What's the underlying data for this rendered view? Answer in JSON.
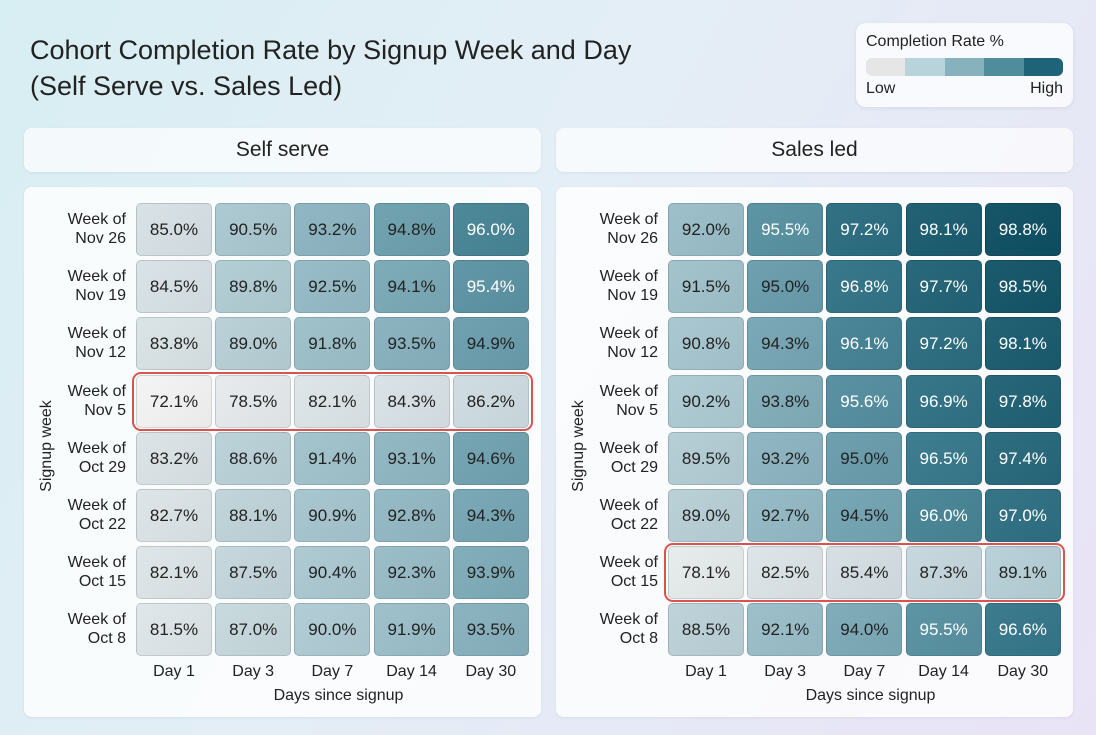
{
  "title": [
    "Cohort Completion Rate by Signup Week and Day",
    "(Self Serve vs. Sales Led)"
  ],
  "legend": {
    "title": "Completion Rate %",
    "low": "Low",
    "high": "High",
    "colors": [
      "#e6e6e6",
      "#b8d3d9",
      "#86b1bd",
      "#4f8c9c",
      "#1e6378"
    ]
  },
  "chart_data": [
    {
      "type": "heatmap",
      "title": "Self serve",
      "xlabel": "Days since signup",
      "ylabel": "Signup week",
      "columns": [
        "Day 1",
        "Day 3",
        "Day 7",
        "Day 14",
        "Day 30"
      ],
      "rows": [
        "Week of Nov 26",
        "Week of Nov 19",
        "Week of Nov 12",
        "Week of Nov 5",
        "Week of Oct 29",
        "Week of Oct 22",
        "Week of Oct 15",
        "Week of Oct 8"
      ],
      "values": [
        [
          85.0,
          90.5,
          93.2,
          94.8,
          96.0
        ],
        [
          84.5,
          89.8,
          92.5,
          94.1,
          95.4
        ],
        [
          83.8,
          89.0,
          91.8,
          93.5,
          94.9
        ],
        [
          72.1,
          78.5,
          82.1,
          84.3,
          86.2
        ],
        [
          83.2,
          88.6,
          91.4,
          93.1,
          94.6
        ],
        [
          82.7,
          88.1,
          90.9,
          92.8,
          94.3
        ],
        [
          82.1,
          87.5,
          90.4,
          92.3,
          93.9
        ],
        [
          81.5,
          87.0,
          90.0,
          91.9,
          93.5
        ]
      ],
      "highlighted_row": "Week of Nov 5"
    },
    {
      "type": "heatmap",
      "title": "Sales led",
      "xlabel": "Days since signup",
      "ylabel": "Signup week",
      "columns": [
        "Day 1",
        "Day 3",
        "Day 7",
        "Day 14",
        "Day 30"
      ],
      "rows": [
        "Week of Nov 26",
        "Week of Nov 19",
        "Week of Nov 12",
        "Week of Nov 5",
        "Week of Oct 29",
        "Week of Oct 22",
        "Week of Oct 15",
        "Week of Oct 8"
      ],
      "values": [
        [
          92.0,
          95.5,
          97.2,
          98.1,
          98.8
        ],
        [
          91.5,
          95.0,
          96.8,
          97.7,
          98.5
        ],
        [
          90.8,
          94.3,
          96.1,
          97.2,
          98.1
        ],
        [
          90.2,
          93.8,
          95.6,
          96.9,
          97.8
        ],
        [
          89.5,
          93.2,
          95.0,
          96.5,
          97.4
        ],
        [
          89.0,
          92.7,
          94.5,
          96.0,
          97.0
        ],
        [
          78.1,
          82.5,
          85.4,
          87.3,
          89.1
        ],
        [
          88.5,
          92.1,
          94.0,
          95.5,
          96.6
        ]
      ],
      "highlighted_row": "Week of Oct 15"
    }
  ],
  "highlight_color": "#d9534f"
}
